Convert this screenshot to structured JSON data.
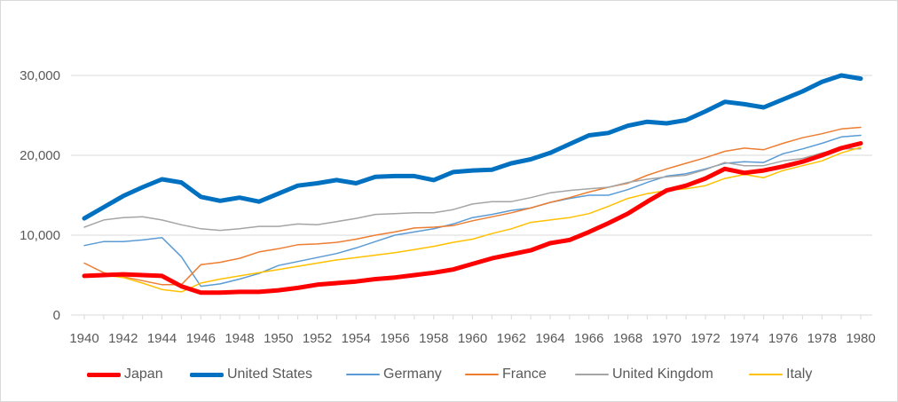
{
  "chart_data": {
    "type": "line",
    "title": "",
    "xlabel": "",
    "ylabel": "",
    "ylim": [
      0,
      35000
    ],
    "y_ticks": [
      0,
      10000,
      20000,
      30000
    ],
    "y_tick_labels": [
      "0",
      "10,000",
      "20,000",
      "30,000"
    ],
    "x_ticks": [
      1940,
      1942,
      1944,
      1946,
      1948,
      1950,
      1952,
      1954,
      1956,
      1958,
      1960,
      1962,
      1964,
      1966,
      1968,
      1970,
      1972,
      1974,
      1976,
      1978,
      1980
    ],
    "x_tick_labels": [
      "1940",
      "1942",
      "1944",
      "1946",
      "1948",
      "1950",
      "1952",
      "1954",
      "1956",
      "1958",
      "1960",
      "1962",
      "1964",
      "1966",
      "1968",
      "1970",
      "1972",
      "1974",
      "1976",
      "1978",
      "1980"
    ],
    "x": [
      1940,
      1941,
      1942,
      1943,
      1944,
      1945,
      1946,
      1947,
      1948,
      1949,
      1950,
      1951,
      1952,
      1953,
      1954,
      1955,
      1956,
      1957,
      1958,
      1959,
      1960,
      1961,
      1962,
      1963,
      1964,
      1965,
      1966,
      1967,
      1968,
      1969,
      1970,
      1971,
      1972,
      1973,
      1974,
      1975,
      1976,
      1977,
      1978,
      1979,
      1980
    ],
    "grid": "horizontal",
    "legend_position": "bottom",
    "series": [
      {
        "name": "Japan",
        "color": "#ff0000",
        "width": 5,
        "values": [
          4900,
          5000,
          5100,
          5000,
          4900,
          3600,
          2800,
          2800,
          2900,
          2900,
          3100,
          3400,
          3800,
          4000,
          4200,
          4500,
          4700,
          5000,
          5300,
          5700,
          6400,
          7100,
          7600,
          8100,
          9000,
          9400,
          10400,
          11500,
          12700,
          14200,
          15600,
          16200,
          17100,
          18300,
          17800,
          18100,
          18600,
          19200,
          20000,
          20900,
          21500
        ]
      },
      {
        "name": "United States",
        "color": "#0070c0",
        "width": 5,
        "values": [
          12100,
          13500,
          14900,
          16000,
          17000,
          16600,
          14800,
          14300,
          14700,
          14200,
          15200,
          16200,
          16500,
          16900,
          16500,
          17300,
          17400,
          17400,
          16900,
          17900,
          18100,
          18200,
          19000,
          19500,
          20300,
          21400,
          22500,
          22800,
          23700,
          24200,
          24000,
          24400,
          25500,
          26700,
          26400,
          26000,
          27000,
          28000,
          29200,
          30000,
          29600
        ]
      },
      {
        "name": "Germany",
        "color": "#5b9bd5",
        "width": 1.5,
        "values": [
          8700,
          9200,
          9200,
          9400,
          9700,
          7300,
          3600,
          3900,
          4500,
          5200,
          6200,
          6700,
          7200,
          7700,
          8400,
          9200,
          10000,
          10400,
          10800,
          11400,
          12200,
          12600,
          13100,
          13400,
          14100,
          14600,
          15000,
          15000,
          15700,
          16600,
          17400,
          17700,
          18300,
          19000,
          19200,
          19100,
          20200,
          20800,
          21500,
          22300,
          22500
        ]
      },
      {
        "name": "France",
        "color": "#ed7d31",
        "width": 1.5,
        "values": [
          6500,
          5300,
          4800,
          4300,
          3800,
          3800,
          6300,
          6600,
          7100,
          7900,
          8300,
          8800,
          8900,
          9100,
          9500,
          10000,
          10400,
          10900,
          11000,
          11200,
          11800,
          12300,
          12800,
          13400,
          14100,
          14700,
          15400,
          16000,
          16500,
          17500,
          18300,
          19000,
          19700,
          20500,
          20900,
          20700,
          21500,
          22200,
          22700,
          23300,
          23500
        ]
      },
      {
        "name": "United Kingdom",
        "color": "#a5a5a5",
        "width": 1.5,
        "values": [
          11000,
          11900,
          12200,
          12300,
          11900,
          11300,
          10800,
          10600,
          10800,
          11100,
          11100,
          11400,
          11300,
          11700,
          12100,
          12600,
          12700,
          12800,
          12800,
          13200,
          13900,
          14200,
          14200,
          14700,
          15300,
          15600,
          15800,
          16000,
          16600,
          17000,
          17300,
          17500,
          18200,
          19100,
          18700,
          18700,
          19300,
          19600,
          20300,
          20800,
          20800
        ]
      },
      {
        "name": "Italy",
        "color": "#ffc000",
        "width": 1.5,
        "values": [
          5000,
          5000,
          4700,
          4000,
          3200,
          2900,
          4000,
          4500,
          4900,
          5300,
          5700,
          6100,
          6500,
          6900,
          7200,
          7500,
          7800,
          8200,
          8600,
          9100,
          9500,
          10200,
          10800,
          11600,
          11900,
          12200,
          12700,
          13600,
          14600,
          15200,
          15600,
          15800,
          16200,
          17100,
          17600,
          17200,
          18100,
          18700,
          19300,
          20300,
          21000
        ]
      }
    ]
  }
}
